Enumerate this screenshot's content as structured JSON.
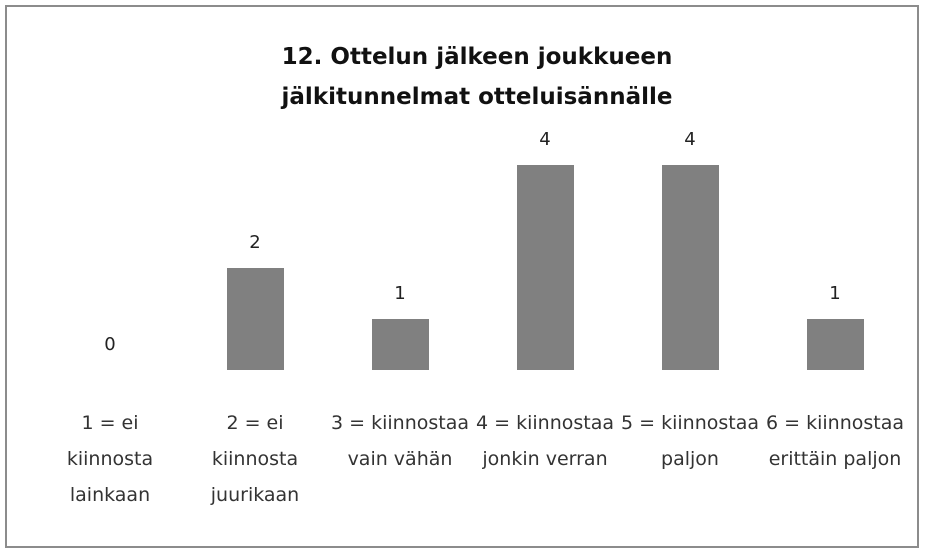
{
  "chart_data": {
    "type": "bar",
    "title": "12. Ottelun jälkeen joukkueen jälkitunnelmat otteluisännälle",
    "categories": [
      "1 = ei kiinnosta lainkaan",
      "2 = ei kiinnosta juurikaan",
      "3 = kiinnostaa vain vähän",
      "4 = kiinnostaa jonkin verran",
      "5 = kiinnostaa paljon",
      "6 = kiinnostaa erittäin paljon"
    ],
    "values": [
      0,
      2,
      1,
      4,
      4,
      1
    ],
    "color": "#808080"
  }
}
